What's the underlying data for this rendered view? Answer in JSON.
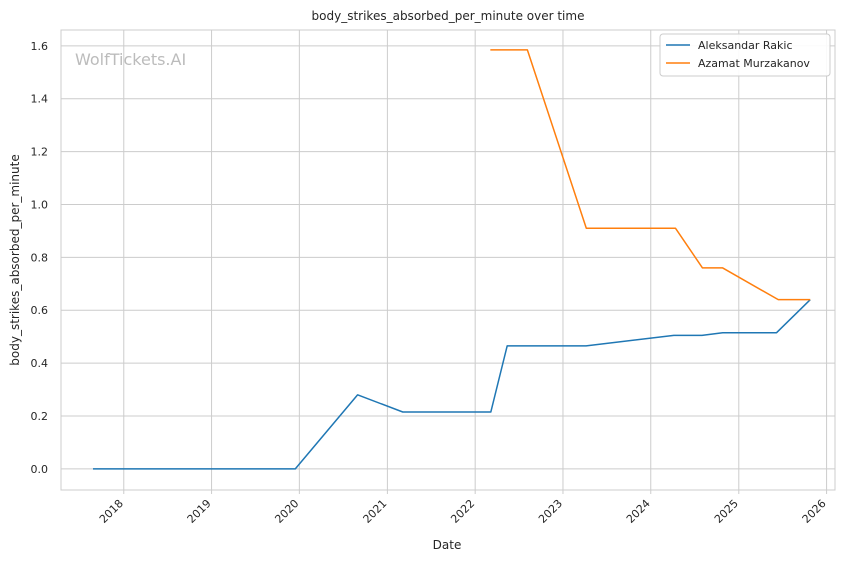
{
  "chart_data": {
    "type": "line",
    "title": "body_strikes_absorbed_per_minute over time",
    "xlabel": "Date",
    "ylabel": "body_strikes_absorbed_per_minute",
    "watermark": "WolfTickets.AI",
    "grid": true,
    "legend_position": "top-right",
    "xlim": [
      "2017-04-15",
      "2026-02-05"
    ],
    "ylim": [
      -0.08,
      1.66
    ],
    "x_ticks": [
      "2018",
      "2019",
      "2020",
      "2021",
      "2022",
      "2023",
      "2024",
      "2025",
      "2026"
    ],
    "y_ticks": [
      "0.0",
      "0.2",
      "0.4",
      "0.6",
      "0.8",
      "1.0",
      "1.2",
      "1.4",
      "1.6"
    ],
    "series": [
      {
        "name": "Aleksandar Rakic",
        "color": "#1f77b4",
        "points": [
          {
            "x": "2017-08-26",
            "y": 0.0
          },
          {
            "x": "2019-12-15",
            "y": 0.0
          },
          {
            "x": "2020-08-30",
            "y": 0.28
          },
          {
            "x": "2021-03-06",
            "y": 0.215
          },
          {
            "x": "2022-03-07",
            "y": 0.215
          },
          {
            "x": "2022-05-14",
            "y": 0.465
          },
          {
            "x": "2023-04-07",
            "y": 0.465
          },
          {
            "x": "2024-04-06",
            "y": 0.505
          },
          {
            "x": "2024-08-01",
            "y": 0.505
          },
          {
            "x": "2024-10-26",
            "y": 0.515
          },
          {
            "x": "2025-06-07",
            "y": 0.515
          },
          {
            "x": "2025-10-25",
            "y": 0.64
          }
        ]
      },
      {
        "name": "Azamat Murzakanov",
        "color": "#ff7f0e",
        "points": [
          {
            "x": "2022-03-05",
            "y": 1.585
          },
          {
            "x": "2022-08-06",
            "y": 1.585
          },
          {
            "x": "2023-04-08",
            "y": 0.91
          },
          {
            "x": "2024-04-13",
            "y": 0.91
          },
          {
            "x": "2024-08-03",
            "y": 0.76
          },
          {
            "x": "2024-10-26",
            "y": 0.76
          },
          {
            "x": "2025-06-14",
            "y": 0.64
          },
          {
            "x": "2025-10-25",
            "y": 0.64
          }
        ]
      }
    ]
  }
}
